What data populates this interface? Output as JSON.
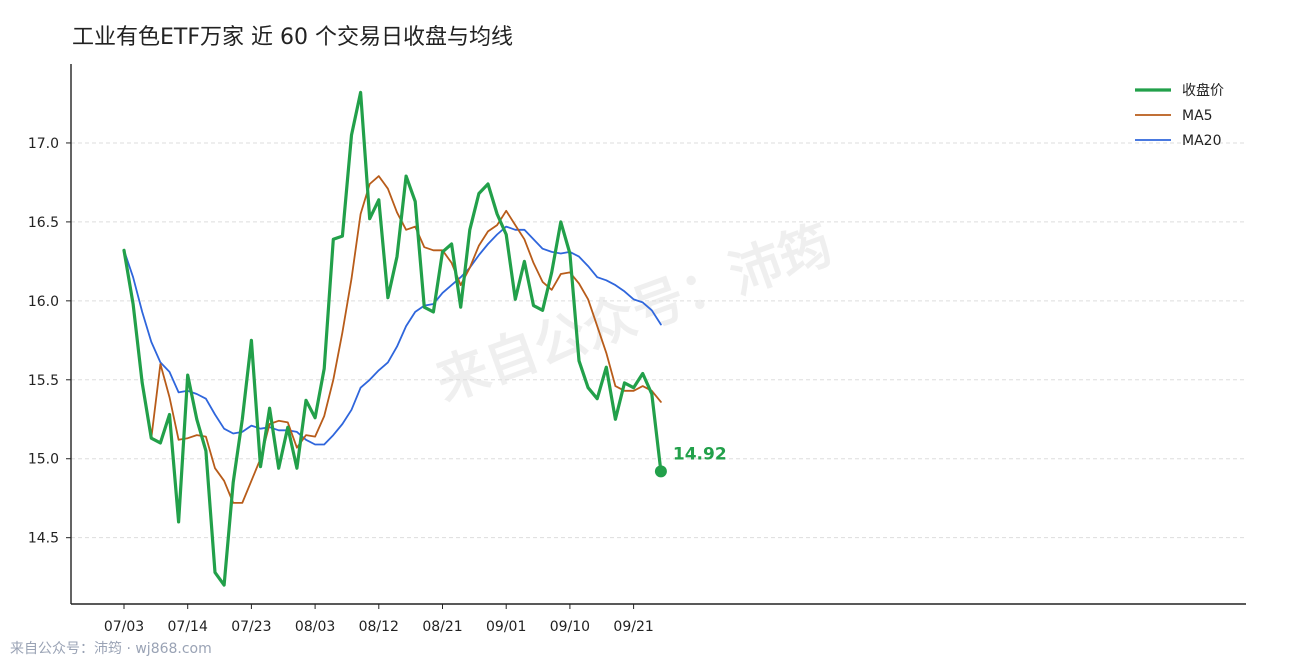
{
  "chart_data": {
    "type": "line",
    "title": "工业有色ETF万家 近 60 个交易日收盘与均线",
    "x_tick_labels": [
      "07/03",
      "07/14",
      "07/23",
      "08/03",
      "08/12",
      "08/21",
      "09/01",
      "09/10",
      "09/21"
    ],
    "x_tick_indices": [
      0,
      7,
      14,
      21,
      28,
      35,
      42,
      49,
      56
    ],
    "ylim": [
      14.08,
      17.5
    ],
    "y_ticks": [
      14.5,
      15.0,
      15.5,
      16.0,
      16.5,
      17.0
    ],
    "grid": "horizontal dashed",
    "legend_position": "top-right",
    "series": [
      {
        "name": "收盘价",
        "color": "#22a04a",
        "values": [
          16.32,
          15.98,
          15.48,
          15.13,
          15.1,
          15.28,
          14.6,
          15.53,
          15.25,
          15.05,
          14.28,
          14.2,
          14.85,
          15.25,
          15.75,
          14.95,
          15.32,
          14.94,
          15.2,
          14.94,
          15.37,
          15.26,
          15.57,
          16.39,
          16.41,
          17.05,
          17.32,
          16.52,
          16.64,
          16.02,
          16.28,
          16.79,
          16.63,
          15.96,
          15.93,
          16.31,
          16.36,
          15.96,
          16.45,
          16.68,
          16.74,
          16.55,
          16.42,
          16.01,
          16.25,
          15.97,
          15.94,
          16.18,
          16.5,
          16.3,
          15.62,
          15.45,
          15.38,
          15.58,
          15.25,
          15.48,
          15.45,
          15.54,
          15.41,
          14.92
        ]
      },
      {
        "name": "MA5",
        "color": "#b85c1a",
        "values": [
          16.32,
          15.98,
          15.48,
          15.13,
          15.6,
          15.39,
          15.12,
          15.13,
          15.15,
          15.14,
          14.94,
          14.86,
          14.72,
          14.72,
          14.86,
          15.0,
          15.22,
          15.24,
          15.23,
          15.07,
          15.15,
          15.14,
          15.27,
          15.5,
          15.8,
          16.14,
          16.55,
          16.74,
          16.79,
          16.71,
          16.56,
          16.45,
          16.47,
          16.34,
          16.32,
          16.32,
          16.24,
          16.1,
          16.21,
          16.35,
          16.44,
          16.48,
          16.57,
          16.48,
          16.39,
          16.24,
          16.12,
          16.07,
          16.17,
          16.18,
          16.11,
          16.01,
          15.84,
          15.67,
          15.46,
          15.43,
          15.43,
          15.46,
          15.43,
          15.36
        ]
      },
      {
        "name": "MA20",
        "color": "#2f66dc",
        "values": [
          16.32,
          16.15,
          15.93,
          15.74,
          15.61,
          15.55,
          15.42,
          15.43,
          15.41,
          15.38,
          15.28,
          15.19,
          15.16,
          15.17,
          15.21,
          15.19,
          15.2,
          15.18,
          15.18,
          15.17,
          15.12,
          15.09,
          15.09,
          15.15,
          15.22,
          15.31,
          15.45,
          15.5,
          15.56,
          15.61,
          15.71,
          15.84,
          15.93,
          15.97,
          15.98,
          16.05,
          16.1,
          16.15,
          16.21,
          16.29,
          16.36,
          16.42,
          16.47,
          16.45,
          16.45,
          16.39,
          16.33,
          16.31,
          16.3,
          16.31,
          16.28,
          16.22,
          16.15,
          16.13,
          16.1,
          16.06,
          16.01,
          15.99,
          15.94,
          15.85
        ]
      }
    ],
    "last_value_label": "14.92",
    "watermark": "来自公众号：沛筠",
    "footer": "来自公众号：沛筠 · wj868.com"
  }
}
